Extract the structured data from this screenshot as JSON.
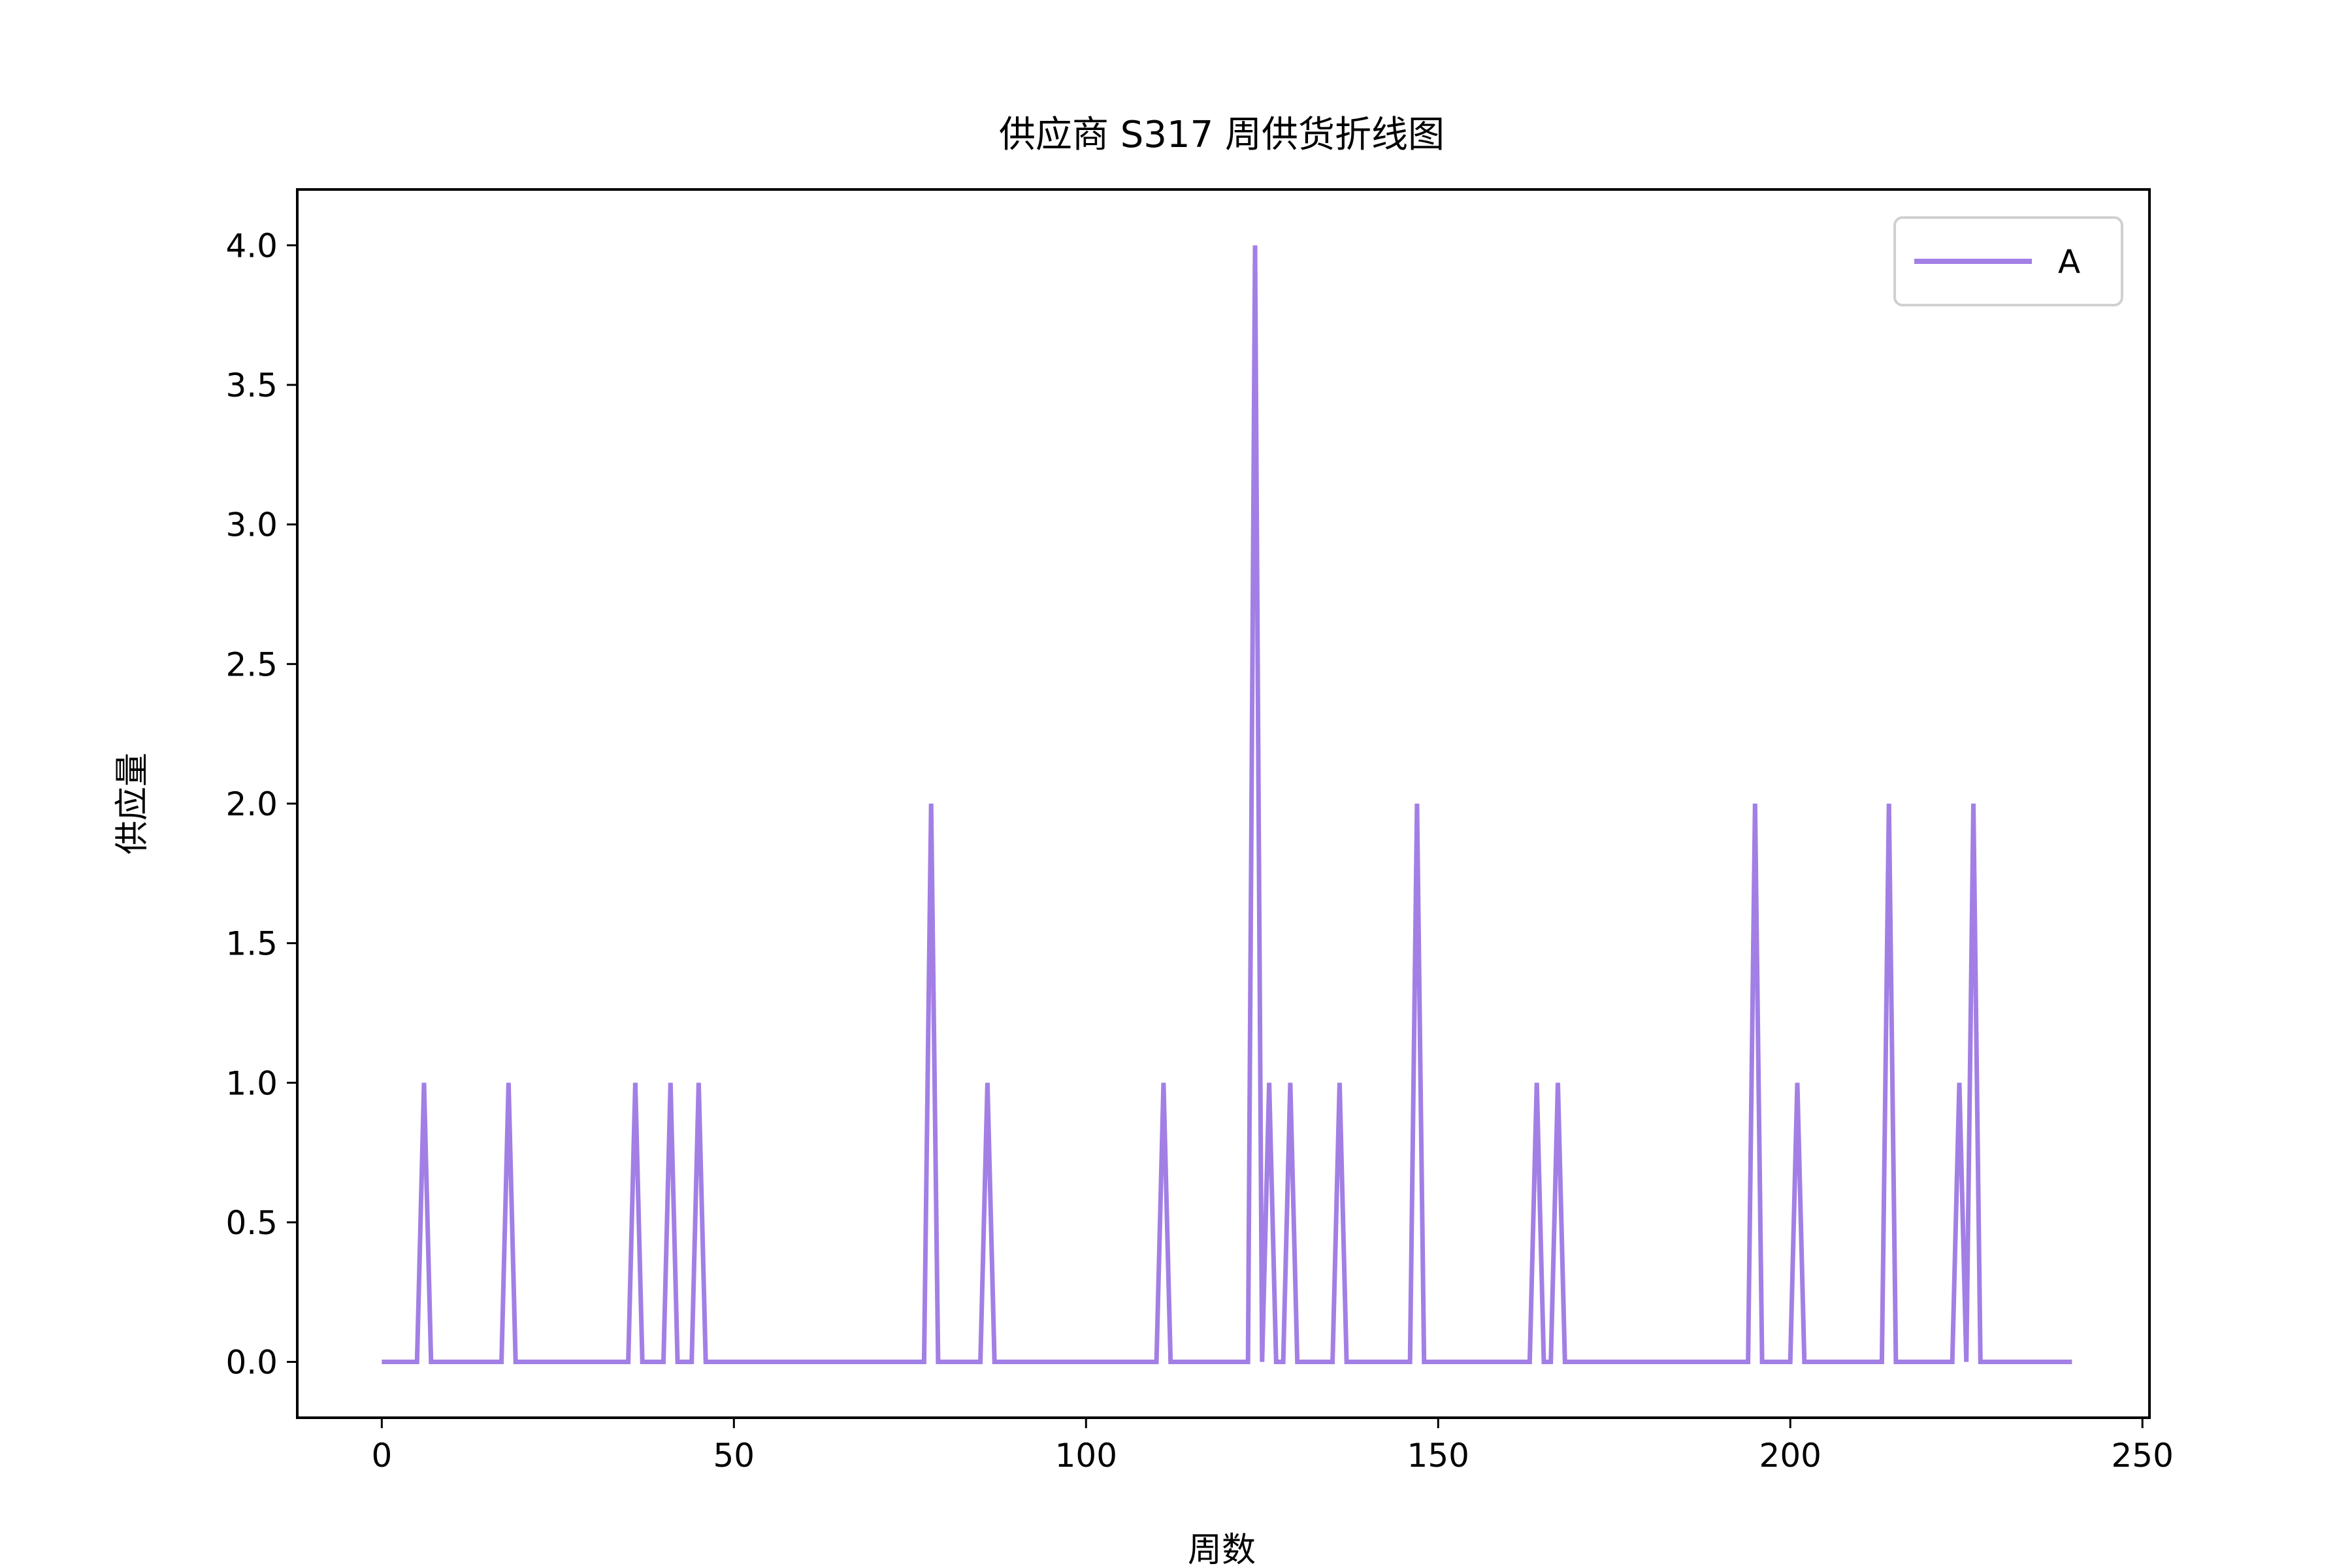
{
  "chart_data": {
    "type": "line",
    "title": "供应商 S317 周供货折线图",
    "xlabel": "周数",
    "ylabel": "供应量",
    "xlim": [
      -12,
      251
    ],
    "ylim": [
      -0.2,
      4.2
    ],
    "xticks": [
      0,
      50,
      100,
      150,
      200,
      250
    ],
    "yticks": [
      0.0,
      0.5,
      1.0,
      1.5,
      2.0,
      2.5,
      3.0,
      3.5,
      4.0
    ],
    "grid": false,
    "legend_position": "top-right",
    "series": [
      {
        "name": "A",
        "color": "#a27fe5",
        "points": [
          [
            0,
            0
          ],
          [
            5,
            0
          ],
          [
            6,
            1
          ],
          [
            7,
            0
          ],
          [
            17,
            0
          ],
          [
            18,
            1
          ],
          [
            19,
            0
          ],
          [
            35,
            0
          ],
          [
            36,
            1
          ],
          [
            37,
            0
          ],
          [
            40,
            0
          ],
          [
            41,
            1
          ],
          [
            42,
            0
          ],
          [
            44,
            0
          ],
          [
            45,
            1
          ],
          [
            46,
            0
          ],
          [
            77,
            0
          ],
          [
            78,
            2
          ],
          [
            79,
            0
          ],
          [
            85,
            0
          ],
          [
            86,
            1
          ],
          [
            87,
            0
          ],
          [
            110,
            0
          ],
          [
            111,
            1
          ],
          [
            112,
            0
          ],
          [
            123,
            0
          ],
          [
            124,
            4
          ],
          [
            125,
            0
          ],
          [
            126,
            1
          ],
          [
            127,
            0
          ],
          [
            128,
            0
          ],
          [
            129,
            1
          ],
          [
            130,
            0
          ],
          [
            135,
            0
          ],
          [
            136,
            1
          ],
          [
            137,
            0
          ],
          [
            146,
            0
          ],
          [
            147,
            2
          ],
          [
            148,
            0
          ],
          [
            163,
            0
          ],
          [
            164,
            1
          ],
          [
            165,
            0
          ],
          [
            166,
            0
          ],
          [
            167,
            1
          ],
          [
            168,
            0
          ],
          [
            194,
            0
          ],
          [
            195,
            2
          ],
          [
            196,
            0
          ],
          [
            200,
            0
          ],
          [
            201,
            1
          ],
          [
            202,
            0
          ],
          [
            213,
            0
          ],
          [
            214,
            2
          ],
          [
            215,
            0
          ],
          [
            223,
            0
          ],
          [
            224,
            1
          ],
          [
            225,
            0
          ],
          [
            226,
            2
          ],
          [
            227,
            0
          ],
          [
            240,
            0
          ]
        ]
      }
    ]
  }
}
